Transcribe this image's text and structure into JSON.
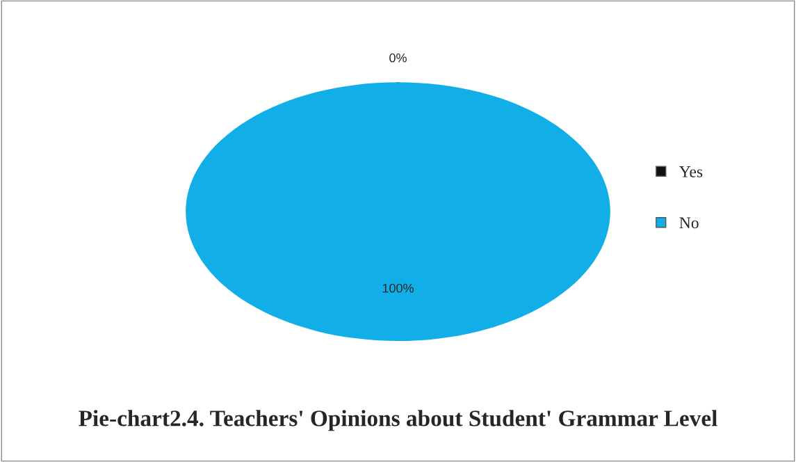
{
  "chart_data": {
    "type": "pie",
    "title": "Pie-chart2.4. Teachers' Opinions about Student' Grammar Level",
    "categories": [
      "Yes",
      "No"
    ],
    "values": [
      0,
      100
    ],
    "colors": [
      "#111111",
      "#12aee8"
    ],
    "value_labels": [
      "0%",
      "100%"
    ],
    "legend": "right"
  }
}
